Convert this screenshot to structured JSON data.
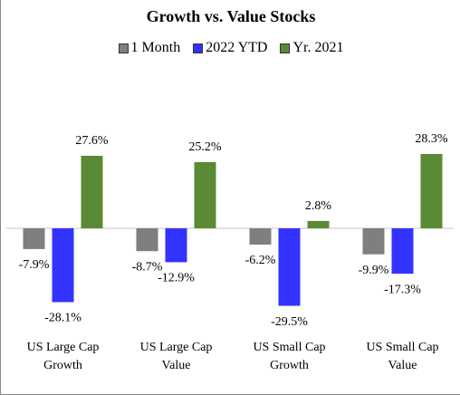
{
  "chart_data": {
    "type": "bar",
    "title": "Growth vs. Value Stocks",
    "categories": [
      "US Large Cap Growth",
      "US Large Cap Value",
      "US Small Cap Growth",
      "US Small Cap Value"
    ],
    "series": [
      {
        "name": "1 Month",
        "color": "#7f7f7f",
        "values": [
          -7.9,
          -8.7,
          -6.2,
          -9.9
        ],
        "value_labels": [
          "-7.9%",
          "-8.7%",
          "-6.2%",
          "-9.9%"
        ]
      },
      {
        "name": "2022 YTD",
        "color": "#3333ff",
        "values": [
          -28.1,
          -12.9,
          -29.5,
          -17.3
        ],
        "value_labels": [
          "-28.1%",
          "-12.9%",
          "-29.5%",
          "-17.3%"
        ]
      },
      {
        "name": "Yr. 2021",
        "color": "#5a8a34",
        "values": [
          27.6,
          25.2,
          2.8,
          28.3
        ],
        "value_labels": [
          "27.6%",
          "25.2%",
          "2.8%",
          "28.3%"
        ]
      }
    ],
    "ylim": [
      -35,
      35
    ],
    "legend": "top"
  }
}
